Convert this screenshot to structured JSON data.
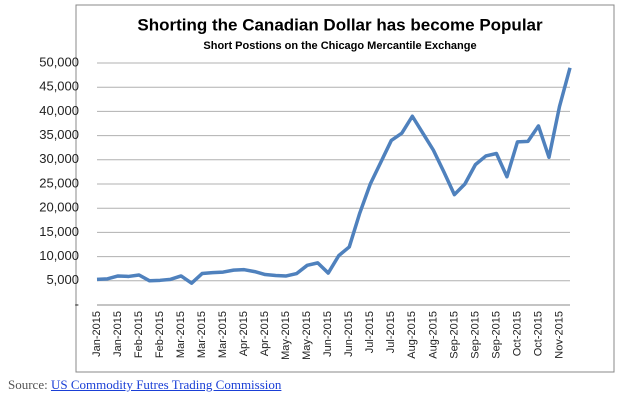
{
  "chart_data": {
    "type": "line",
    "title": "Shorting the Canadian Dollar has become Popular",
    "subtitle": "Short Postions on the Chicago Mercantile Exchange",
    "categories": [
      "Jan-2015",
      null,
      "Jan-2015",
      null,
      "Feb-2015",
      null,
      "Feb-2015",
      null,
      "Mar-2015",
      null,
      "Mar-2015",
      null,
      "Mar-2015",
      null,
      "Apr-2015",
      null,
      "Apr-2015",
      null,
      "May-2015",
      null,
      "May-2015",
      null,
      "Jun-2015",
      null,
      "Jun-2015",
      null,
      "Jul-2015",
      null,
      "Jul-2015",
      null,
      "Aug-2015",
      null,
      "Aug-2015",
      null,
      "Sep-2015",
      null,
      "Sep-2015",
      null,
      "Sep-2015",
      null,
      "Oct-2015",
      null,
      "Oct-2015",
      null,
      "Nov-2015",
      null
    ],
    "series": [
      {
        "name": "Short Positions",
        "color": "#4f81bd",
        "values": [
          5300,
          5400,
          6000,
          5900,
          6200,
          5000,
          5100,
          5300,
          6000,
          4500,
          6500,
          6700,
          6800,
          7200,
          7300,
          6900,
          6300,
          6100,
          6000,
          6500,
          8200,
          8700,
          6600,
          10200,
          12000,
          19000,
          25000,
          29500,
          34000,
          35500,
          39000,
          35500,
          32000,
          27500,
          22800,
          25000,
          29000,
          30800,
          31300,
          26500,
          33700,
          33800,
          37000,
          30500,
          41000,
          49000
        ]
      }
    ],
    "ylim": [
      0,
      50000
    ],
    "yticks": [
      {
        "value": 0,
        "label": "-"
      },
      {
        "value": 5000,
        "label": "5,000"
      },
      {
        "value": 10000,
        "label": "10,000"
      },
      {
        "value": 15000,
        "label": "15,000"
      },
      {
        "value": 20000,
        "label": "20,000"
      },
      {
        "value": 25000,
        "label": "25,000"
      },
      {
        "value": 30000,
        "label": "30,000"
      },
      {
        "value": 35000,
        "label": "35,000"
      },
      {
        "value": 40000,
        "label": "40,000"
      },
      {
        "value": 45000,
        "label": "45,000"
      },
      {
        "value": 50000,
        "label": "50,000"
      }
    ],
    "grid": true
  },
  "source": {
    "prefix": "Source:",
    "link": "US Commodity Futres Trading Commission"
  }
}
